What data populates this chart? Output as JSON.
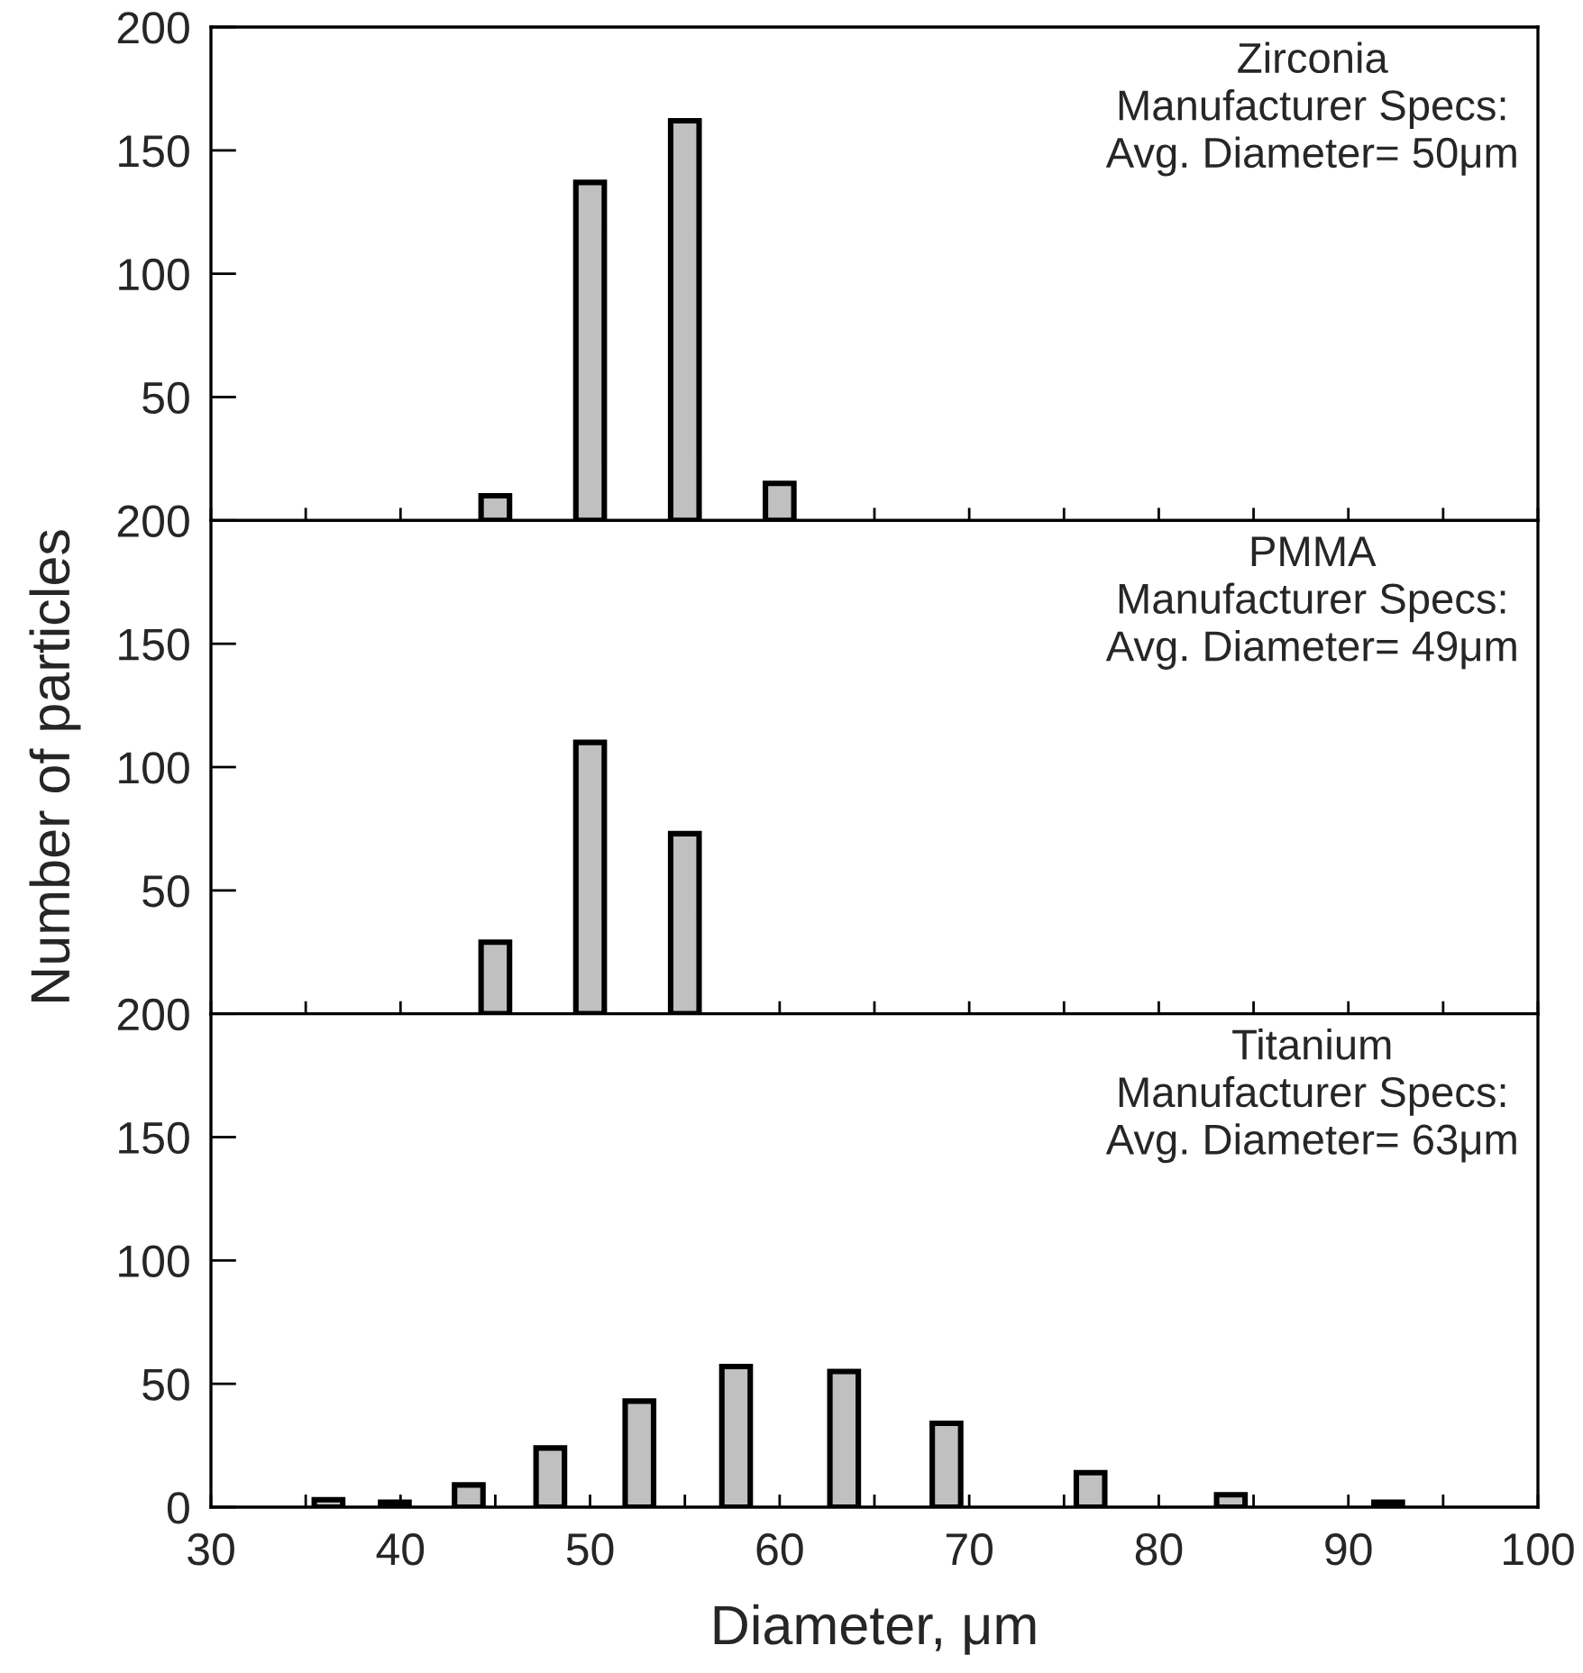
{
  "chart_data": [
    {
      "type": "bar",
      "x": [
        45,
        50,
        55,
        60
      ],
      "values": [
        10,
        137,
        162,
        15
      ],
      "color": "#c0c0c0",
      "xlim": [
        30,
        100
      ],
      "xticks": [
        30,
        {
          "value": 35,
          "label": null
        },
        40,
        {
          "value": 45,
          "label": null
        },
        50,
        {
          "value": 55,
          "label": null
        },
        60,
        {
          "value": 65,
          "label": null
        },
        70,
        {
          "value": 75,
          "label": null
        },
        80,
        {
          "value": 85,
          "label": null
        },
        90,
        {
          "value": 95,
          "label": null
        },
        100
      ],
      "ylim": [
        0,
        200
      ],
      "yticks": [
        {
          "value": 0,
          "label": null
        },
        50,
        100,
        150,
        200
      ],
      "tick_labels": "y",
      "annotations": [
        "Zirconia\nManufacturer Specs:\nAvg. Diameter= 50μm"
      ]
    },
    {
      "type": "bar",
      "x": [
        45,
        50,
        55
      ],
      "values": [
        29,
        110,
        73
      ],
      "color": "#c0c0c0",
      "xlim": [
        30,
        100
      ],
      "xticks": [
        30,
        {
          "value": 35,
          "label": null
        },
        40,
        {
          "value": 45,
          "label": null
        },
        50,
        {
          "value": 55,
          "label": null
        },
        60,
        {
          "value": 65,
          "label": null
        },
        70,
        {
          "value": 75,
          "label": null
        },
        80,
        {
          "value": 85,
          "label": null
        },
        90,
        {
          "value": 95,
          "label": null
        },
        100
      ],
      "ylim": [
        0,
        200
      ],
      "yticks": [
        {
          "value": 0,
          "label": null
        },
        50,
        100,
        150,
        200
      ],
      "tick_labels": "y",
      "ylabel": "Number of particles",
      "annotations": [
        "PMMA\nManufacturer Specs:\nAvg. Diameter= 49μm"
      ]
    },
    {
      "type": "bar",
      "x": [
        36.2,
        39.7,
        43.6,
        47.9,
        52.6,
        57.7,
        63.4,
        68.8,
        76.4,
        83.8,
        92.1
      ],
      "values": [
        3,
        2,
        9,
        24,
        43,
        57,
        55,
        34,
        14,
        5,
        2
      ],
      "color": "#c0c0c0",
      "xlim": [
        30,
        100
      ],
      "xticks": [
        30,
        {
          "value": 35,
          "label": null
        },
        40,
        {
          "value": 45,
          "label": null
        },
        50,
        {
          "value": 55,
          "label": null
        },
        60,
        {
          "value": 65,
          "label": null
        },
        70,
        {
          "value": 75,
          "label": null
        },
        80,
        {
          "value": 85,
          "label": null
        },
        90,
        {
          "value": 95,
          "label": null
        },
        100
      ],
      "ylim": [
        0,
        200
      ],
      "yticks": [
        0,
        50,
        100,
        150,
        200
      ],
      "xlabel": "Diameter, μm",
      "annotations": [
        "Titanium\nManufacturer Specs:\nAvg. Diameter= 63μm"
      ]
    }
  ]
}
